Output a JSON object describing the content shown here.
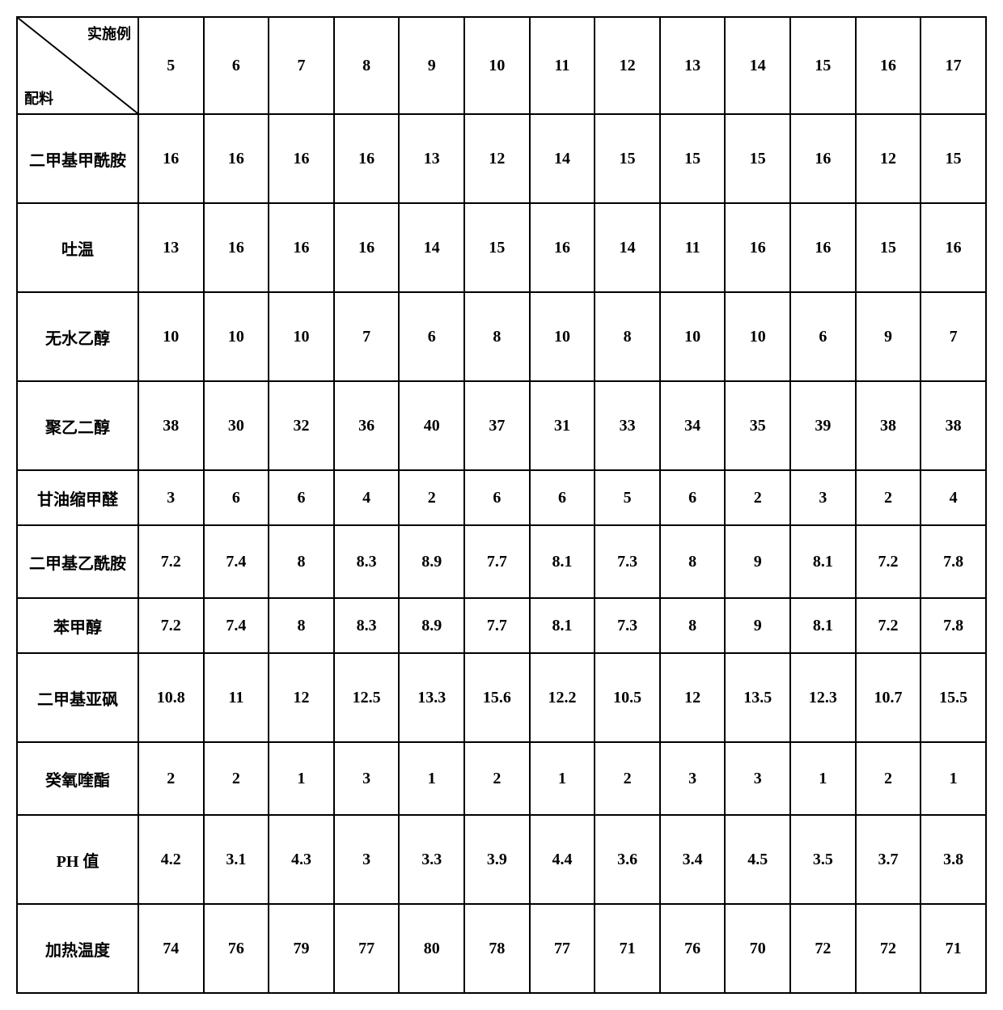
{
  "table": {
    "type": "table",
    "border_color": "#000000",
    "background_color": "#ffffff",
    "text_color": "#000000",
    "font_size": 20,
    "font_weight": "bold",
    "header_diagonal": {
      "top_label": "实施例",
      "bottom_label": "配料"
    },
    "column_headers": [
      "5",
      "6",
      "7",
      "8",
      "9",
      "10",
      "11",
      "12",
      "13",
      "14",
      "15",
      "16",
      "17"
    ],
    "row_heights": [
      "h-tall",
      "h-tall",
      "h-tall",
      "h-tall",
      "h-short",
      "h-med",
      "h-short",
      "h-tall",
      "h-med",
      "h-tall",
      "h-tall"
    ],
    "row_labels": [
      "二甲基甲酰胺",
      "吐温",
      "无水乙醇",
      "聚乙二醇",
      "甘油缩甲醛",
      "二甲基乙酰胺",
      "苯甲醇",
      "二甲基亚砜",
      "癸氧喹酯",
      "PH 值",
      "加热温度"
    ],
    "rows": [
      [
        "16",
        "16",
        "16",
        "16",
        "13",
        "12",
        "14",
        "15",
        "15",
        "15",
        "16",
        "12",
        "15"
      ],
      [
        "13",
        "16",
        "16",
        "16",
        "14",
        "15",
        "16",
        "14",
        "11",
        "16",
        "16",
        "15",
        "16"
      ],
      [
        "10",
        "10",
        "10",
        "7",
        "6",
        "8",
        "10",
        "8",
        "10",
        "10",
        "6",
        "9",
        "7"
      ],
      [
        "38",
        "30",
        "32",
        "36",
        "40",
        "37",
        "31",
        "33",
        "34",
        "35",
        "39",
        "38",
        "38"
      ],
      [
        "3",
        "6",
        "6",
        "4",
        "2",
        "6",
        "6",
        "5",
        "6",
        "2",
        "3",
        "2",
        "4"
      ],
      [
        "7.2",
        "7.4",
        "8",
        "8.3",
        "8.9",
        "7.7",
        "8.1",
        "7.3",
        "8",
        "9",
        "8.1",
        "7.2",
        "7.8"
      ],
      [
        "7.2",
        "7.4",
        "8",
        "8.3",
        "8.9",
        "7.7",
        "8.1",
        "7.3",
        "8",
        "9",
        "8.1",
        "7.2",
        "7.8"
      ],
      [
        "10.8",
        "11",
        "12",
        "12.5",
        "13.3",
        "15.6",
        "12.2",
        "10.5",
        "12",
        "13.5",
        "12.3",
        "10.7",
        "15.5"
      ],
      [
        "2",
        "2",
        "1",
        "3",
        "1",
        "2",
        "1",
        "2",
        "3",
        "3",
        "1",
        "2",
        "1"
      ],
      [
        "4.2",
        "3.1",
        "4.3",
        "3",
        "3.3",
        "3.9",
        "4.4",
        "3.6",
        "3.4",
        "4.5",
        "3.5",
        "3.7",
        "3.8"
      ],
      [
        "74",
        "76",
        "79",
        "77",
        "80",
        "78",
        "77",
        "71",
        "76",
        "70",
        "72",
        "72",
        "71"
      ]
    ]
  }
}
